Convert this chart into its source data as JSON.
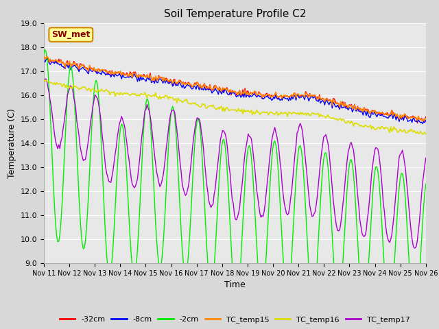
{
  "title": "Soil Temperature Profile C2",
  "xlabel": "Time",
  "ylabel": "Temperature (C)",
  "ylim": [
    9.0,
    19.0
  ],
  "yticks": [
    9.0,
    10.0,
    11.0,
    12.0,
    13.0,
    14.0,
    15.0,
    16.0,
    17.0,
    18.0,
    19.0
  ],
  "xtick_labels": [
    "Nov 11",
    "Nov 12",
    "Nov 13",
    "Nov 14",
    "Nov 15",
    "Nov 16",
    "Nov 17",
    "Nov 18",
    "Nov 19",
    "Nov 20",
    "Nov 21",
    "Nov 22",
    "Nov 23",
    "Nov 24",
    "Nov 25",
    "Nov 26"
  ],
  "fig_bg_color": "#d8d8d8",
  "plot_bg_color": "#e8e8e8",
  "grid_color": "#ffffff",
  "series_colors": {
    "neg32cm": "#ff0000",
    "neg8cm": "#0000ff",
    "neg2cm": "#00ee00",
    "TC_temp15": "#ff8800",
    "TC_temp16": "#dddd00",
    "TC_temp17": "#aa00cc"
  },
  "legend_entries": [
    "-32cm",
    "-8cm",
    "-2cm",
    "TC_temp15",
    "TC_temp16",
    "TC_temp17"
  ],
  "sw_met_bg": "#ffff99",
  "sw_met_border": "#cc8800",
  "sw_met_text_color": "#880000"
}
